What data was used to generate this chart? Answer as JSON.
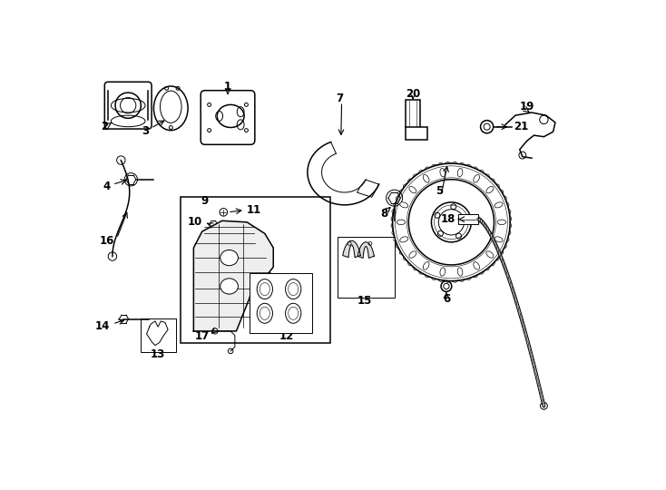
{
  "background": "#ffffff",
  "line_color": "#000000",
  "fig_width": 7.34,
  "fig_height": 5.4,
  "dpi": 100
}
